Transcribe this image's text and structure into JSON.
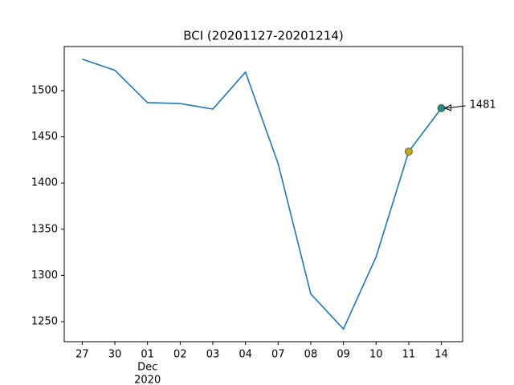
{
  "chart_data": {
    "type": "line",
    "title": "BCI (20201127-20201214)",
    "categories": [
      "27",
      "30",
      [
        "01",
        "Dec",
        "2020"
      ],
      "02",
      "03",
      "04",
      "07",
      "08",
      "09",
      "10",
      "11",
      "14"
    ],
    "series": [
      {
        "name": "BCI",
        "color": "#1f77b4",
        "values": [
          1534,
          1522,
          1487,
          1486,
          1480,
          1520,
          1421,
          1280,
          1242,
          1320,
          1434,
          1481
        ],
        "marker_colors": [
          null,
          null,
          null,
          null,
          null,
          null,
          null,
          null,
          null,
          null,
          "#d4a020",
          "#1f8a8a"
        ]
      }
    ],
    "annotation": "1481",
    "ylim": [
      1228.3,
      1547.7
    ],
    "yticks": [
      1250,
      1300,
      1350,
      1400,
      1450,
      1500
    ]
  }
}
